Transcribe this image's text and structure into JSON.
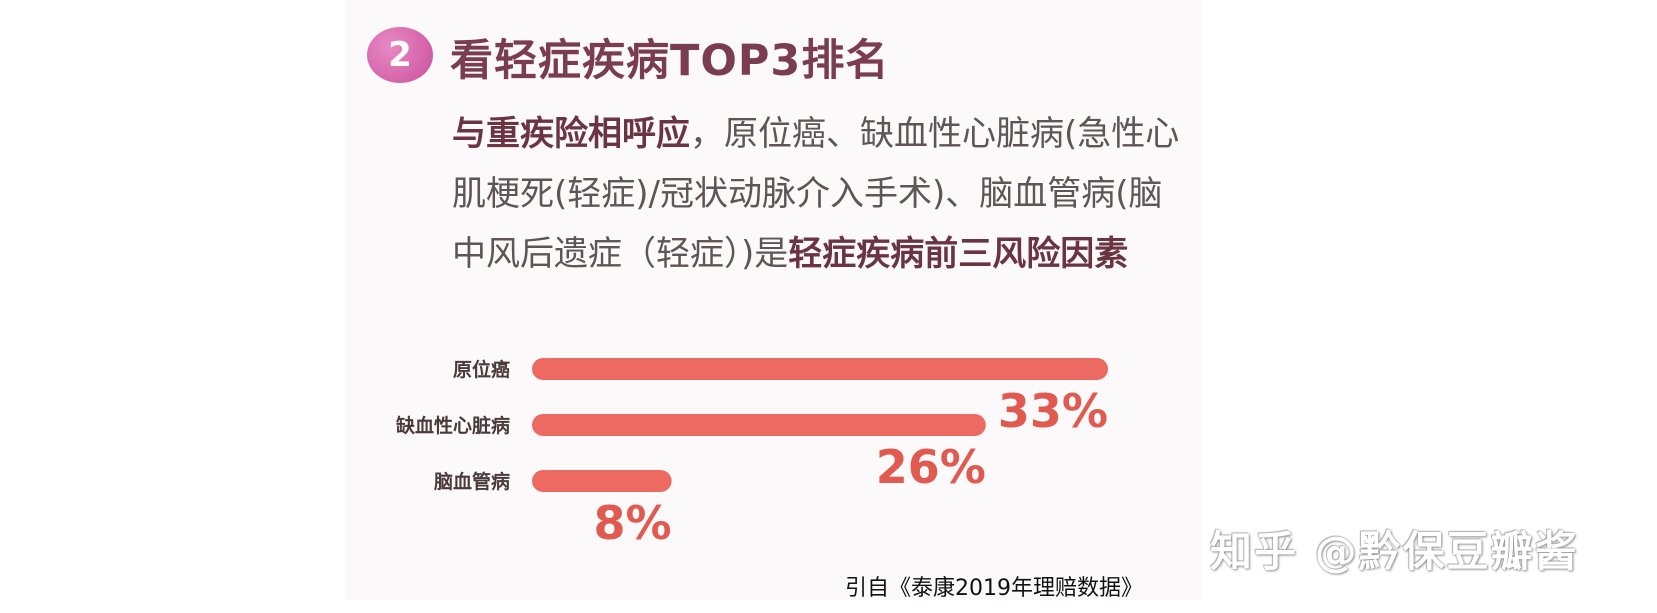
{
  "badge_number": "2",
  "heading": "看轻症疾病TOP3排名",
  "description": {
    "line1_bold": "与重疾险相呼应",
    "line1_rest": "，原位癌、缺血性心脏病(急性心",
    "line2": "肌梗死(轻症)/冠状动脉介入手术)、脑血管病(脑",
    "line3_normal": "中风后遗症（轻症）)是",
    "line3_bold": "轻症疾病前三风险因素"
  },
  "chart_data": {
    "type": "bar",
    "orientation": "horizontal",
    "categories": [
      "原位癌",
      "缺血性心脏病",
      "脑血管病"
    ],
    "values": [
      33,
      26,
      8
    ],
    "value_labels": [
      "33%",
      "26%",
      "8%"
    ],
    "unit": "%",
    "xlim": [
      0,
      33
    ],
    "grid": false,
    "legend": "none",
    "title": "",
    "xlabel": "",
    "ylabel": ""
  },
  "source_note": "引自《泰康2019年理赔数据》",
  "watermark": "知乎 @黔保豆瓣酱",
  "colors": {
    "bar": "#ed6a62",
    "value_label": "#e05a50",
    "heading": "#7a3d4f",
    "badge": "#d866a8",
    "category_label": "#4a3a3a"
  }
}
